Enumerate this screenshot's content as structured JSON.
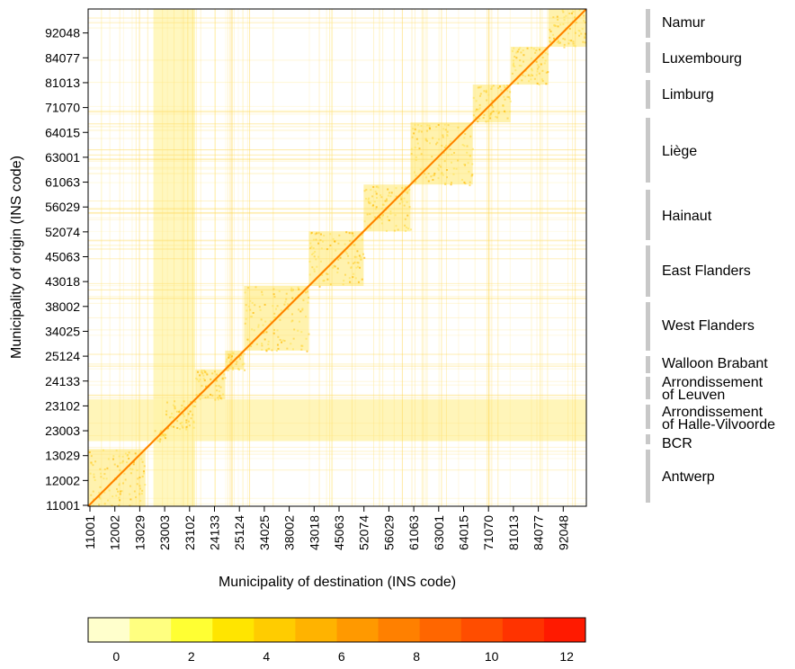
{
  "chart_data": {
    "type": "heatmap",
    "title": "",
    "xlabel": "Municipality of destination (INS code)",
    "ylabel": "Municipality of origin (INS code)",
    "x_ticks": [
      "11001",
      "12002",
      "13029",
      "23003",
      "23102",
      "24133",
      "25124",
      "34025",
      "38002",
      "43018",
      "45063",
      "52074",
      "56029",
      "61063",
      "63001",
      "64015",
      "71070",
      "81013",
      "84077",
      "92048"
    ],
    "y_ticks": [
      "11001",
      "12002",
      "13029",
      "23003",
      "23102",
      "24133",
      "25124",
      "34025",
      "38002",
      "43018",
      "45063",
      "52074",
      "56029",
      "61063",
      "63001",
      "64015",
      "71070",
      "81013",
      "84077",
      "92048"
    ],
    "regions": [
      {
        "name": "Antwerp",
        "range": [
          0.0,
          0.115
        ]
      },
      {
        "name": "BCR",
        "range": [
          0.131,
          0.155
        ]
      },
      {
        "name": "Arrondissement of Halle-Vilvoorde",
        "range": [
          0.155,
          0.215
        ]
      },
      {
        "name": "Arrondissement of Leuven",
        "range": [
          0.215,
          0.275
        ]
      },
      {
        "name": "Walloon Brabant",
        "range": [
          0.275,
          0.313
        ]
      },
      {
        "name": "West Flanders",
        "range": [
          0.313,
          0.443
        ]
      },
      {
        "name": "East Flanders",
        "range": [
          0.443,
          0.553
        ]
      },
      {
        "name": "Hainaut",
        "range": [
          0.553,
          0.647
        ]
      },
      {
        "name": "Liège",
        "range": [
          0.647,
          0.772
        ]
      },
      {
        "name": "Limburg",
        "range": [
          0.772,
          0.848
        ]
      },
      {
        "name": "Luxembourg",
        "range": [
          0.848,
          0.924
        ]
      },
      {
        "name": "Namur",
        "range": [
          0.924,
          1.0
        ]
      }
    ],
    "colorbar": {
      "tick_labels": [
        "0",
        "2",
        "4",
        "6",
        "8",
        "10",
        "12"
      ],
      "tick_values": [
        0,
        2,
        4,
        6,
        8,
        10,
        12
      ],
      "range": [
        -0.75,
        12.5
      ],
      "colors": [
        "#FFFFCC",
        "#FFFF80",
        "#FFFF33",
        "#FFE500",
        "#FFCC00",
        "#FFB300",
        "#FF9900",
        "#FF8000",
        "#FF6600",
        "#FF4D00",
        "#FF3300",
        "#FF1A00"
      ]
    },
    "grid": false,
    "legend": "colorbar-bottom"
  },
  "region_labels": {
    "namur": "Namur",
    "luxembourg": "Luxembourg",
    "limburg": "Limburg",
    "liege": "Liège",
    "hainaut": "Hainaut",
    "east_flanders": "East Flanders",
    "west_flanders": "West Flanders",
    "walloon_brabant": "Walloon Brabant",
    "leuven_1": "Arrondissement",
    "leuven_2": "of Leuven",
    "halle_1": "Arrondissement",
    "halle_2": "of Halle-Vilvoorde",
    "bcr": "BCR",
    "antwerp": "Antwerp"
  }
}
